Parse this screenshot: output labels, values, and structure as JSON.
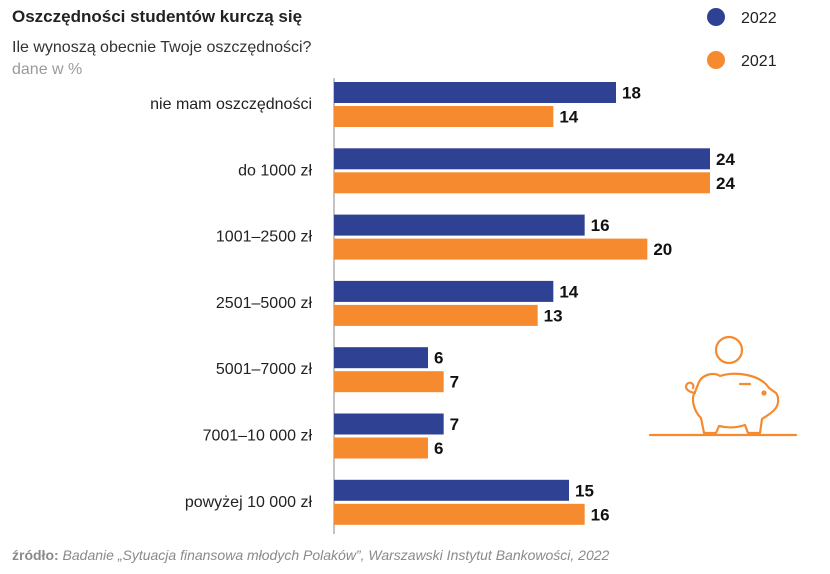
{
  "colors": {
    "series_2022": "#2f4193",
    "series_2021": "#f58a2e",
    "axis": "#8a8a8a"
  },
  "chart_data": {
    "type": "bar",
    "orientation": "horizontal",
    "title": "Oszczędności studentów kurczą się",
    "subtitle": "Ile wynoszą obecnie Twoje oszczędności?",
    "unit_note": "dane w %",
    "categories": [
      "nie mam oszczędności",
      "do 1000 zł",
      "1001–2500 zł",
      "2501–5000 zł",
      "5001–7000 zł",
      "7001–10 000 zł",
      "powyżej 10 000 zł"
    ],
    "series": [
      {
        "name": "2022",
        "values": [
          18,
          24,
          16,
          14,
          6,
          7,
          15
        ]
      },
      {
        "name": "2021",
        "values": [
          14,
          24,
          20,
          13,
          7,
          6,
          16
        ]
      }
    ],
    "xlim": [
      0,
      24
    ],
    "grid": false,
    "legend_position": "top-right"
  },
  "source": {
    "label": "źródło:",
    "text": "Badanie „Sytuacja finansowa młodych Polaków”, Warszawski Instytut Bankowości, 2022"
  },
  "icon": "piggy-bank-icon"
}
